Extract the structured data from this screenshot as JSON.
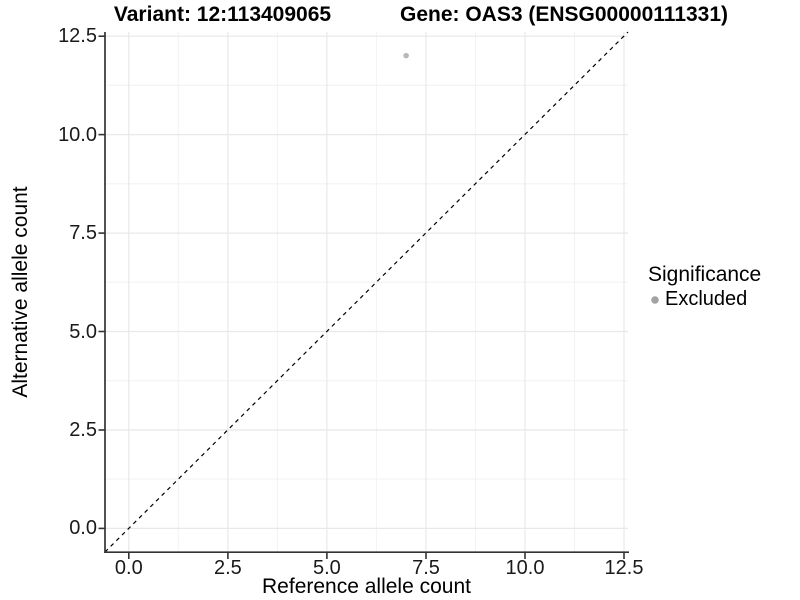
{
  "figure": {
    "background": "#ffffff",
    "title_left": "Variant: 12:113409065",
    "title_right": "Gene: OAS3 (ENSG00000111331)"
  },
  "chart_data": {
    "type": "scatter",
    "title_left": "Variant: 12:113409065",
    "title_right": "Gene: OAS3 (ENSG00000111331)",
    "xlabel": "Reference allele count",
    "ylabel": "Alternative allele count",
    "xlim": [
      -0.6,
      12.6
    ],
    "ylim": [
      -0.6,
      12.6
    ],
    "x_ticks": [
      0.0,
      2.5,
      5.0,
      7.5,
      10.0,
      12.5
    ],
    "x_tick_labels": [
      "0.0",
      "2.5",
      "5.0",
      "7.5",
      "10.0",
      "12.5"
    ],
    "y_ticks": [
      0.0,
      2.5,
      5.0,
      7.5,
      10.0,
      12.5
    ],
    "y_tick_labels": [
      "0.0",
      "2.5",
      "5.0",
      "7.5",
      "10.0",
      "12.5"
    ],
    "grid": true,
    "points": [
      {
        "x": 7,
        "y": 12,
        "significance": "Excluded",
        "color": "#b9b9b9"
      }
    ],
    "reference_line": {
      "type": "identity",
      "slope": 1,
      "intercept": 0,
      "style": "dashed",
      "color": "#000000"
    },
    "legend": {
      "position": "right",
      "title": "Significance",
      "items": [
        {
          "label": "Excluded",
          "marker": "circle",
          "color": "#a3a3a3"
        }
      ]
    },
    "colors": {
      "axis_line": "#333333",
      "grid_major": "#e8e8e8",
      "grid_minor": "#f3f3f3",
      "tick_label": "#1a1a1a"
    }
  }
}
